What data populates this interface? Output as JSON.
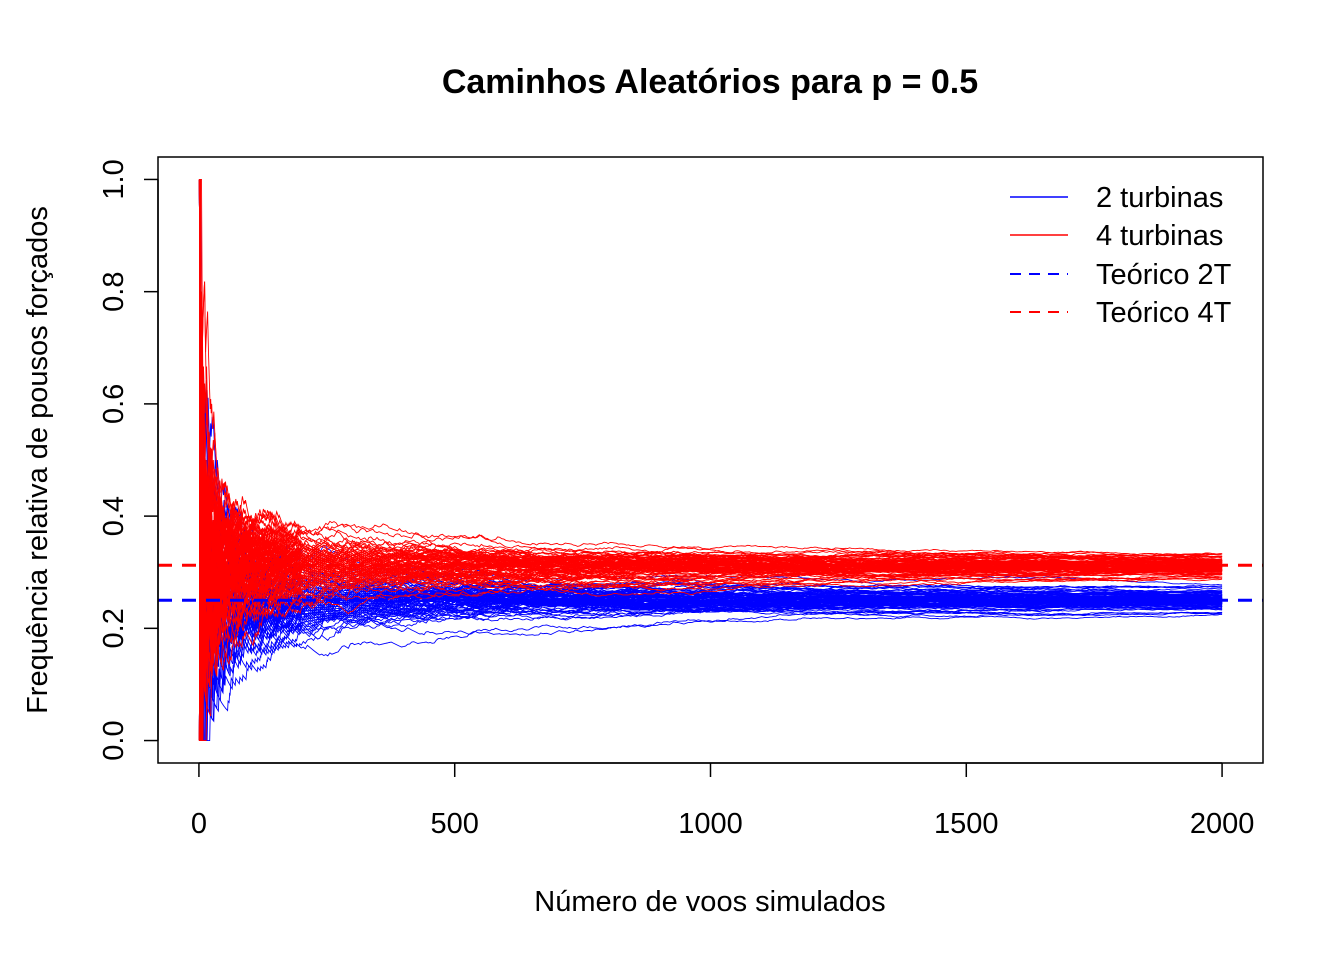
{
  "chart_data": {
    "type": "line",
    "title": "Caminhos Aleatórios para p = 0.5",
    "xlabel": "Número de voos simulados",
    "ylabel": "Frequência relativa de pousos forçados",
    "xlim": [
      -80,
      2080
    ],
    "ylim": [
      -0.04,
      1.04
    ],
    "x_ticks": [
      0,
      500,
      1000,
      1500,
      2000
    ],
    "x_tick_labels": [
      "0",
      "500",
      "1000",
      "1500",
      "2000"
    ],
    "y_ticks": [
      0.0,
      0.2,
      0.4,
      0.6,
      0.8,
      1.0
    ],
    "y_tick_labels": [
      "0.0",
      "0.2",
      "0.4",
      "0.6",
      "0.8",
      "1.0"
    ],
    "n_flights": 2000,
    "n_paths_per_series": 100,
    "grid": false,
    "legend_position": "top-right",
    "series": [
      {
        "name": "2 turbinas",
        "color": "#0000ff",
        "style": "solid",
        "true_p": 0.25
      },
      {
        "name": "4 turbinas",
        "color": "#ff0000",
        "style": "solid",
        "true_p": 0.3125
      }
    ],
    "reference_lines": [
      {
        "name": "Teórico 2T",
        "y": 0.25,
        "color": "#0000ff",
        "style": "dashed"
      },
      {
        "name": "Teórico 4T",
        "y": 0.3125,
        "color": "#ff0000",
        "style": "dashed"
      }
    ]
  }
}
